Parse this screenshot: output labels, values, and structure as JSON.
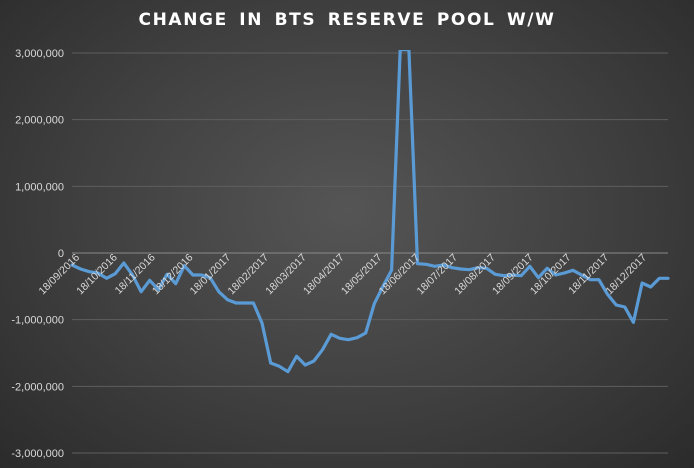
{
  "chart_data": {
    "type": "line",
    "title": "CHANGE  IN  BTS  RESERVE  POOL  W/W",
    "xlabel": "",
    "ylabel": "",
    "ylim": [
      -3000000,
      3000000
    ],
    "yticks": [
      3000000,
      2000000,
      1000000,
      0,
      -1000000,
      -2000000,
      -3000000
    ],
    "ytick_labels": [
      "3,000,000",
      "2,000,000",
      "1,000,000",
      "0",
      "-1,000,000",
      "-2,000,000",
      "-3,000,000"
    ],
    "xtick_labels": [
      "18/09/2016",
      "18/10/2016",
      "18/11/2016",
      "18/12/2016",
      "18/01/2017",
      "18/02/2017",
      "18/03/2017",
      "18/04/2017",
      "18/05/2017",
      "18/06/2017",
      "18/07/2017",
      "18/08/2017",
      "18/09/2017",
      "18/10/2017",
      "18/11/2017",
      "18/12/2017"
    ],
    "grid": true,
    "legend": "none",
    "color": "#5b9bd5",
    "series": [
      {
        "values": [
          -180000,
          -240000,
          -280000,
          -300000,
          -380000,
          -310000,
          -150000,
          -330000,
          -580000,
          -410000,
          -550000,
          -320000,
          -460000,
          -190000,
          -330000,
          -330000,
          -370000,
          -580000,
          -700000,
          -750000,
          -750000,
          -750000,
          -1050000,
          -1650000,
          -1700000,
          -1780000,
          -1550000,
          -1680000,
          -1620000,
          -1450000,
          -1220000,
          -1280000,
          -1300000,
          -1270000,
          -1200000,
          -760000,
          -500000,
          -260000,
          3050000,
          3050000,
          -160000,
          -170000,
          -200000,
          -180000,
          -220000,
          -240000,
          -250000,
          -220000,
          -230000,
          -320000,
          -340000,
          -330000,
          -340000,
          -200000,
          -370000,
          -230000,
          -330000,
          -300000,
          -260000,
          -330000,
          -400000,
          -400000,
          -620000,
          -780000,
          -810000,
          -1040000,
          -450000,
          -510000,
          -380000,
          -380000
        ]
      }
    ]
  }
}
